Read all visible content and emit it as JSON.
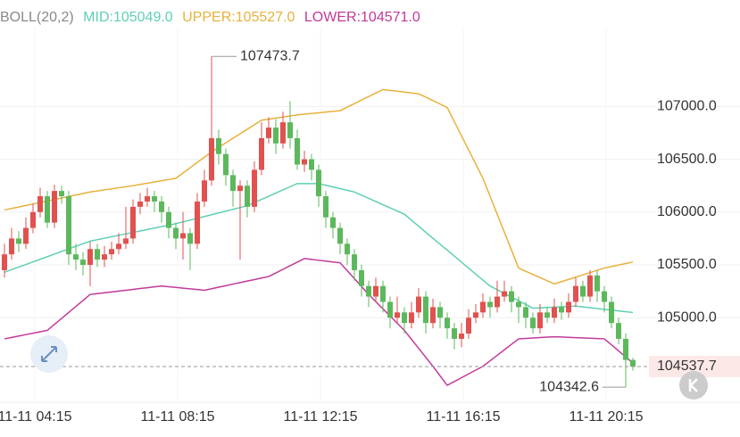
{
  "chart_data": {
    "type": "candlestick",
    "indicator": "BOLL(20,2)",
    "categories": [
      null,
      null,
      null,
      null,
      null,
      "11-11 04:15",
      null,
      null,
      null,
      null,
      null,
      null,
      null,
      null,
      null,
      null,
      null,
      null,
      null,
      null,
      null,
      null,
      null,
      null,
      null,
      "11-11 08:15",
      null,
      null,
      null,
      null,
      null,
      null,
      null,
      null,
      null,
      null,
      null,
      null,
      null,
      null,
      null,
      null,
      null,
      null,
      null,
      "11-11 12:15",
      null,
      null,
      null,
      null,
      null,
      null,
      null,
      null,
      null,
      null,
      null,
      null,
      null,
      null,
      null,
      null,
      null,
      null,
      null,
      "11-11 16:15",
      null,
      null,
      null,
      null,
      null,
      null,
      null,
      null,
      null,
      null,
      null,
      null,
      null,
      null,
      null,
      null,
      null,
      null,
      null,
      "11-11 20:15",
      null,
      null,
      null
    ],
    "open": [
      105450,
      105600,
      105750,
      105700,
      105850,
      106000,
      106150,
      105900,
      106200,
      106150,
      105600,
      105550,
      105500,
      105650,
      105550,
      105600,
      105650,
      105700,
      105750,
      106050,
      106100,
      106150,
      106100,
      106000,
      105850,
      105750,
      105800,
      105700,
      106100,
      106300,
      106700,
      106550,
      106350,
      106200,
      106250,
      106050,
      106400,
      106700,
      106800,
      106650,
      106850,
      106700,
      106450,
      106500,
      106400,
      106150,
      105950,
      105850,
      105700,
      105600,
      105450,
      105300,
      105200,
      105300,
      105150,
      105000,
      105050,
      104950,
      105050,
      105200,
      104950,
      105100,
      105000,
      104900,
      104800,
      104850,
      105000,
      105050,
      105150,
      105100,
      105200,
      105250,
      105150,
      105100,
      105000,
      104900,
      105050,
      105000,
      105100,
      105050,
      105150,
      105300,
      105200,
      105400,
      105250,
      105150,
      104950,
      104800,
      104600
    ],
    "high": [
      105700,
      105850,
      105820,
      105950,
      106080,
      106230,
      106200,
      106260,
      106250,
      106200,
      105700,
      105620,
      105720,
      105700,
      105680,
      105720,
      105800,
      106050,
      106120,
      106180,
      106230,
      106200,
      106150,
      106050,
      105900,
      106000,
      105850,
      106180,
      106400,
      107473.7,
      106780,
      106600,
      106400,
      106300,
      106300,
      106480,
      106850,
      106900,
      106880,
      106950,
      107050,
      106780,
      106580,
      106550,
      106450,
      106200,
      106000,
      105900,
      105750,
      105650,
      105500,
      105350,
      105380,
      105350,
      105200,
      105200,
      105100,
      105150,
      105280,
      105250,
      105180,
      105150,
      105050,
      104950,
      104950,
      105080,
      105130,
      105230,
      105200,
      105350,
      105350,
      105300,
      105200,
      105150,
      105050,
      105130,
      105100,
      105180,
      105150,
      105230,
      105380,
      105350,
      105450,
      105450,
      105300,
      105200,
      105000,
      104850,
      104620
    ],
    "low": [
      105380,
      105550,
      105620,
      105650,
      105800,
      105950,
      105850,
      105850,
      106080,
      105500,
      105450,
      105400,
      105300,
      105480,
      105480,
      105550,
      105600,
      105650,
      105700,
      105980,
      106050,
      106000,
      105900,
      105750,
      105650,
      105550,
      105450,
      105650,
      106050,
      106250,
      106450,
      106250,
      106050,
      105550,
      105950,
      106000,
      106350,
      106650,
      106550,
      106600,
      106600,
      106400,
      106380,
      106300,
      106050,
      105850,
      105750,
      105600,
      105500,
      105350,
      105200,
      105100,
      105150,
      105050,
      104900,
      104950,
      104850,
      104900,
      105000,
      104850,
      104900,
      104900,
      104800,
      104700,
      104720,
      104800,
      104950,
      105000,
      105000,
      105050,
      105150,
      105050,
      104950,
      104900,
      104850,
      104850,
      104950,
      104950,
      104980,
      105000,
      105100,
      105150,
      105150,
      105150,
      105050,
      104900,
      104750,
      104342.6,
      104500
    ],
    "close": [
      105600,
      105750,
      105700,
      105850,
      106000,
      106150,
      105900,
      106200,
      106150,
      105600,
      105550,
      105500,
      105650,
      105550,
      105600,
      105650,
      105700,
      105750,
      106050,
      106100,
      106150,
      106100,
      106000,
      105850,
      105750,
      105800,
      105700,
      106100,
      106300,
      106700,
      106550,
      106350,
      106200,
      106250,
      106050,
      106400,
      106700,
      106800,
      106650,
      106850,
      106700,
      106450,
      106500,
      106400,
      106150,
      105950,
      105850,
      105700,
      105600,
      105450,
      105300,
      105200,
      105300,
      105150,
      105000,
      105050,
      104950,
      105050,
      105200,
      104950,
      105100,
      105000,
      104900,
      104800,
      104850,
      105000,
      105050,
      105150,
      105100,
      105200,
      105250,
      105150,
      105100,
      105000,
      104900,
      105050,
      105000,
      105100,
      105050,
      105150,
      105300,
      105200,
      105400,
      105250,
      105150,
      104950,
      104800,
      104600,
      104537.7
    ],
    "up_color": "#e0514f",
    "down_color": "#5cb85c",
    "series": [
      {
        "name": "MID:105049.0",
        "color": "#5fcfb5",
        "values": [
          105430,
          105455,
          105480,
          105504,
          105528,
          105553,
          105578,
          105602,
          105627,
          105651,
          105676,
          105700,
          105725,
          105739,
          105752,
          105766,
          105780,
          105794,
          105807,
          105821,
          105835,
          105849,
          105862,
          105876,
          105890,
          105907,
          105924,
          105941,
          105958,
          105975,
          105992,
          106009,
          106026,
          106043,
          106060,
          106090,
          106120,
          106150,
          106180,
          106210,
          106240,
          106270,
          106270,
          106270,
          106270,
          106254,
          106238,
          106222,
          106206,
          106190,
          106160,
          106130,
          106100,
          106070,
          106040,
          106010,
          105980,
          105923,
          105866,
          105809,
          105752,
          105695,
          105640,
          105583,
          105526,
          105469,
          105412,
          105355,
          105300,
          105265,
          105230,
          105195,
          105160,
          105125,
          105090,
          105093,
          105097,
          105100,
          105103,
          105107,
          105110,
          105102,
          105095,
          105087,
          105079,
          105072,
          105064,
          105057,
          105049
        ]
      },
      {
        "name": "UPPER:105527.0",
        "color": "#e8b13c",
        "values": [
          106020,
          106034,
          106048,
          106063,
          106077,
          106091,
          106105,
          106119,
          106133,
          106148,
          106162,
          106176,
          106190,
          106200,
          106210,
          106220,
          106230,
          106240,
          106250,
          106262,
          106273,
          106285,
          106297,
          106308,
          106320,
          106370,
          106420,
          106470,
          106520,
          106570,
          106613,
          106656,
          106699,
          106741,
          106784,
          106827,
          106870,
          106880,
          106890,
          106900,
          106910,
          106920,
          106927,
          106933,
          106940,
          106947,
          106953,
          106960,
          106993,
          107027,
          107060,
          107093,
          107127,
          107160,
          107152,
          107144,
          107136,
          107128,
          107120,
          107088,
          107055,
          107023,
          106990,
          106856,
          106722,
          106588,
          106454,
          106320,
          106150,
          105980,
          105810,
          105640,
          105470,
          105440,
          105410,
          105380,
          105350,
          105320,
          105341,
          105363,
          105384,
          105406,
          105427,
          105449,
          105470,
          105484,
          105499,
          105513,
          105527
        ]
      },
      {
        "name": "LOWER:104571.0",
        "color": "#c2399a",
        "values": [
          104800,
          104813,
          104827,
          104840,
          104853,
          104867,
          104880,
          104937,
          104993,
          105050,
          105107,
          105163,
          105220,
          105228,
          105236,
          105244,
          105252,
          105260,
          105268,
          105276,
          105284,
          105292,
          105300,
          105293,
          105287,
          105280,
          105273,
          105267,
          105260,
          105274,
          105289,
          105303,
          105318,
          105332,
          105347,
          105361,
          105376,
          105390,
          105424,
          105458,
          105492,
          105526,
          105560,
          105552,
          105544,
          105536,
          105528,
          105520,
          105445,
          105370,
          105295,
          105220,
          105152,
          105084,
          105016,
          104948,
          104880,
          104795,
          104710,
          104625,
          104540,
          104450,
          104360,
          104396,
          104432,
          104468,
          104504,
          104540,
          104592,
          104644,
          104696,
          104748,
          104800,
          104804,
          104808,
          104812,
          104816,
          104820,
          104817,
          104814,
          104811,
          104809,
          104806,
          104803,
          104800,
          104743,
          104686,
          104628,
          104571
        ]
      }
    ],
    "ylim": [
      104200,
      107670
    ],
    "yticks": [
      {
        "value": 105000,
        "label": "105000.0"
      },
      {
        "value": 105500,
        "label": "105500.0"
      },
      {
        "value": 106000,
        "label": "106000.0"
      },
      {
        "value": 106500,
        "label": "106500.0"
      },
      {
        "value": 107000,
        "label": "107000.0"
      }
    ],
    "grid": true
  }
}
